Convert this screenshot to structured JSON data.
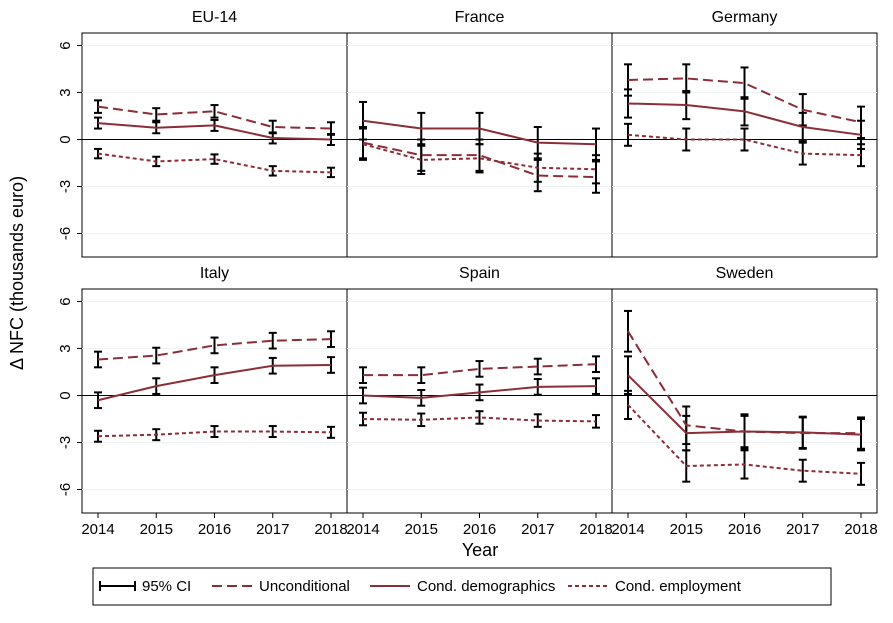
{
  "chart_data": [
    {
      "type": "line",
      "title": "EU-14",
      "categories": [
        "2014",
        "2015",
        "2016",
        "2017",
        "2018"
      ],
      "ylim": [
        -7.5,
        6.8
      ],
      "yticks": [
        -6,
        -3,
        0,
        3,
        6
      ],
      "zero_line": true,
      "series": [
        {
          "name": "Unconditional",
          "color": "#8b2e3a",
          "dash": "dashed",
          "values": [
            2.1,
            1.6,
            1.8,
            0.8,
            0.7
          ],
          "errors": [
            0.4,
            0.4,
            0.4,
            0.4,
            0.4
          ]
        },
        {
          "name": "Cond. demographics",
          "color": "#8b2e3a",
          "dash": "solid",
          "values": [
            1.05,
            0.75,
            0.9,
            0.1,
            0.0
          ],
          "errors": [
            0.35,
            0.35,
            0.35,
            0.35,
            0.35
          ]
        },
        {
          "name": "Cond. employment",
          "color": "#8b2e3a",
          "dash": "dotted",
          "values": [
            -0.9,
            -1.4,
            -1.25,
            -2.0,
            -2.1
          ],
          "errors": [
            0.3,
            0.3,
            0.3,
            0.3,
            0.3
          ]
        }
      ]
    },
    {
      "type": "line",
      "title": "France",
      "categories": [
        "2014",
        "2015",
        "2016",
        "2017",
        "2018"
      ],
      "ylim": [
        -7.5,
        6.8
      ],
      "yticks": [
        -6,
        -3,
        0,
        3,
        6
      ],
      "zero_line": true,
      "series": [
        {
          "name": "Unconditional",
          "color": "#8b2e3a",
          "dash": "dashed",
          "values": [
            -0.2,
            -1.0,
            -1.0,
            -2.3,
            -2.4
          ],
          "errors": [
            1.0,
            1.0,
            1.0,
            1.0,
            1.0
          ]
        },
        {
          "name": "Cond. demographics",
          "color": "#8b2e3a",
          "dash": "solid",
          "values": [
            1.2,
            0.7,
            0.7,
            -0.2,
            -0.3
          ],
          "errors": [
            1.2,
            1.0,
            1.0,
            1.0,
            1.0
          ]
        },
        {
          "name": "Cond. employment",
          "color": "#8b2e3a",
          "dash": "dotted",
          "values": [
            -0.3,
            -1.3,
            -1.2,
            -1.8,
            -1.9
          ],
          "errors": [
            1.0,
            0.9,
            0.9,
            0.9,
            0.9
          ]
        }
      ]
    },
    {
      "type": "line",
      "title": "Germany",
      "categories": [
        "2014",
        "2015",
        "2016",
        "2017",
        "2018"
      ],
      "ylim": [
        -7.5,
        6.8
      ],
      "yticks": [
        -6,
        -3,
        0,
        3,
        6
      ],
      "zero_line": true,
      "series": [
        {
          "name": "Unconditional",
          "color": "#8b2e3a",
          "dash": "dashed",
          "values": [
            3.8,
            3.9,
            3.6,
            1.9,
            1.1
          ],
          "errors": [
            1.0,
            0.9,
            1.0,
            1.0,
            1.0
          ]
        },
        {
          "name": "Cond. demographics",
          "color": "#8b2e3a",
          "dash": "solid",
          "values": [
            2.3,
            2.2,
            1.8,
            0.8,
            0.3
          ],
          "errors": [
            0.9,
            0.9,
            0.9,
            0.9,
            0.9
          ]
        },
        {
          "name": "Cond. employment",
          "color": "#8b2e3a",
          "dash": "dotted",
          "values": [
            0.3,
            0.0,
            0.0,
            -0.9,
            -1.0
          ],
          "errors": [
            0.7,
            0.7,
            0.7,
            0.7,
            0.7
          ]
        }
      ]
    },
    {
      "type": "line",
      "title": "Italy",
      "categories": [
        "2014",
        "2015",
        "2016",
        "2017",
        "2018"
      ],
      "ylim": [
        -7.5,
        6.8
      ],
      "yticks": [
        -6,
        -3,
        0,
        3,
        6
      ],
      "zero_line": true,
      "series": [
        {
          "name": "Unconditional",
          "color": "#8b2e3a",
          "dash": "dashed",
          "values": [
            2.3,
            2.55,
            3.2,
            3.5,
            3.6
          ],
          "errors": [
            0.5,
            0.5,
            0.5,
            0.5,
            0.5
          ]
        },
        {
          "name": "Cond. demographics",
          "color": "#8b2e3a",
          "dash": "solid",
          "values": [
            -0.3,
            0.6,
            1.3,
            1.9,
            1.95
          ],
          "errors": [
            0.5,
            0.5,
            0.5,
            0.5,
            0.5
          ]
        },
        {
          "name": "Cond. employment",
          "color": "#8b2e3a",
          "dash": "dotted",
          "values": [
            -2.6,
            -2.5,
            -2.3,
            -2.3,
            -2.35
          ],
          "errors": [
            0.35,
            0.35,
            0.35,
            0.35,
            0.35
          ]
        }
      ]
    },
    {
      "type": "line",
      "title": "Spain",
      "categories": [
        "2014",
        "2015",
        "2016",
        "2017",
        "2018"
      ],
      "ylim": [
        -7.5,
        6.8
      ],
      "yticks": [
        -6,
        -3,
        0,
        3,
        6
      ],
      "zero_line": true,
      "series": [
        {
          "name": "Unconditional",
          "color": "#8b2e3a",
          "dash": "dashed",
          "values": [
            1.3,
            1.3,
            1.7,
            1.85,
            2.0
          ],
          "errors": [
            0.5,
            0.5,
            0.5,
            0.5,
            0.5
          ]
        },
        {
          "name": "Cond. demographics",
          "color": "#8b2e3a",
          "dash": "solid",
          "values": [
            0.0,
            -0.15,
            0.2,
            0.55,
            0.6
          ],
          "errors": [
            0.5,
            0.5,
            0.5,
            0.5,
            0.5
          ]
        },
        {
          "name": "Cond. employment",
          "color": "#8b2e3a",
          "dash": "dotted",
          "values": [
            -1.5,
            -1.55,
            -1.4,
            -1.6,
            -1.65
          ],
          "errors": [
            0.4,
            0.4,
            0.4,
            0.4,
            0.4
          ]
        }
      ]
    },
    {
      "type": "line",
      "title": "Sweden",
      "categories": [
        "2014",
        "2015",
        "2016",
        "2017",
        "2018"
      ],
      "ylim": [
        -7.5,
        6.8
      ],
      "yticks": [
        -6,
        -3,
        0,
        3,
        6
      ],
      "zero_line": true,
      "series": [
        {
          "name": "Unconditional",
          "color": "#8b2e3a",
          "dash": "dashed",
          "values": [
            4.1,
            -1.9,
            -2.3,
            -2.4,
            -2.4
          ],
          "errors": [
            1.3,
            1.2,
            1.1,
            1.0,
            1.0
          ]
        },
        {
          "name": "Cond. demographics",
          "color": "#8b2e3a",
          "dash": "solid",
          "values": [
            1.3,
            -2.4,
            -2.3,
            -2.35,
            -2.5
          ],
          "errors": [
            1.2,
            1.1,
            1.0,
            1.0,
            1.0
          ]
        },
        {
          "name": "Cond. employment",
          "color": "#8b2e3a",
          "dash": "dotted",
          "values": [
            -0.6,
            -4.5,
            -4.4,
            -4.8,
            -5.0
          ],
          "errors": [
            0.9,
            1.0,
            0.9,
            0.7,
            0.7
          ]
        }
      ]
    }
  ],
  "ylabel": "Δ NFC (thousands euro)",
  "xlabel": "Year",
  "ci_label": "95% CI",
  "ci_color": "#000000"
}
